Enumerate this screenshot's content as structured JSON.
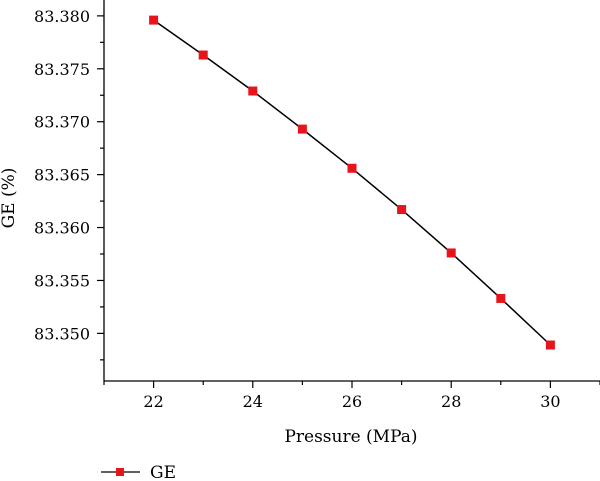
{
  "chart_data": {
    "type": "line",
    "xlabel": "Pressure (MPa)",
    "ylabel": "GE (%)",
    "xlim": [
      21,
      31
    ],
    "ylim": [
      83.3455,
      83.3815
    ],
    "xticks": [
      22,
      24,
      26,
      28,
      30
    ],
    "xtick_labels": [
      "22",
      "24",
      "26",
      "28",
      "30"
    ],
    "yticks": [
      83.35,
      83.355,
      83.36,
      83.365,
      83.37,
      83.375,
      83.38
    ],
    "ytick_labels": [
      "83.350",
      "83.355",
      "83.360",
      "83.365",
      "83.370",
      "83.375",
      "83.380"
    ],
    "grid": false,
    "legend_position": "bottom-left",
    "series": [
      {
        "name": "GE",
        "color": "#e8141b",
        "line_color": "#000000",
        "marker": "square",
        "x": [
          22,
          23,
          24,
          25,
          26,
          27,
          28,
          29,
          30
        ],
        "y": [
          83.3796,
          83.3763,
          83.3729,
          83.3693,
          83.3656,
          83.3617,
          83.3576,
          83.3533,
          83.3489
        ]
      }
    ]
  }
}
